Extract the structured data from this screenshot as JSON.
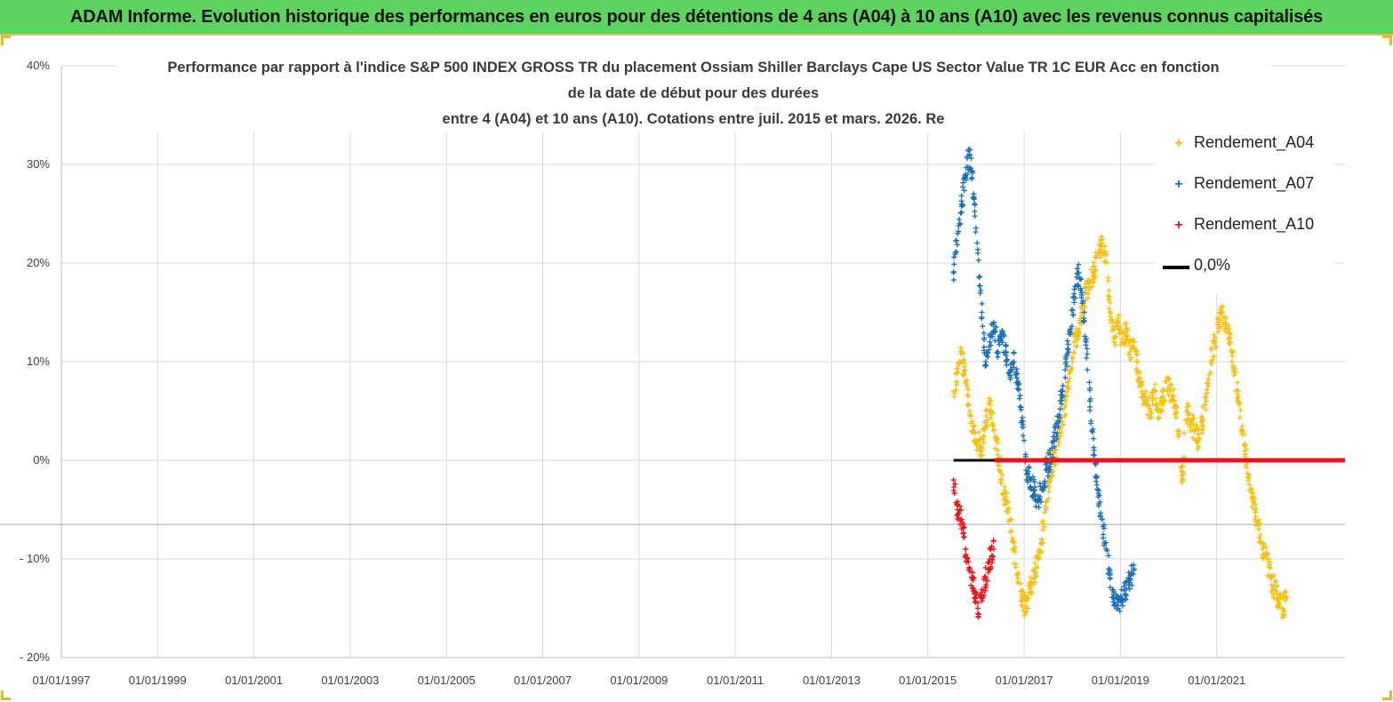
{
  "banner": {
    "title": "ADAM Informe. Evolution historique des performances en euros pour des détentions de 4 ans (A04) à 10 ans (A10) avec les revenus connus capitalisés",
    "background": "#5fd35f"
  },
  "chart_data": {
    "type": "scatter",
    "title_lines": [
      "Performance par rapport à l'indice S&P  500 INDEX GROSS TR  du placement Ossiam Shiller Barclays Cape US Sector Value TR 1C EUR Acc en fonction",
      "de la date de début pour des durées",
      "entre 4 (A04) et 10 ans (A10). Cotations entre juil. 2015 et mars. 2026. Re"
    ],
    "xlabel": "",
    "ylabel": "",
    "x_tick_labels": [
      "01/01/1997",
      "01/01/1999",
      "01/01/2001",
      "01/01/2003",
      "01/01/2005",
      "01/01/2007",
      "01/01/2009",
      "01/01/2011",
      "01/01/2013",
      "01/01/2015",
      "01/01/2017",
      "01/01/2019",
      "01/01/2021"
    ],
    "xlim": [
      "1997-01-01",
      "2023-09-01"
    ],
    "y_tick_labels": [
      "40%",
      "30%",
      "20%",
      "10%",
      "0%",
      "- 10%",
      "- 20%"
    ],
    "y_ticks": [
      40,
      30,
      20,
      10,
      0,
      -10,
      -20
    ],
    "ylim": [
      -20,
      40
    ],
    "y_unit": "%",
    "grid": true,
    "legend_position": "right",
    "series": [
      {
        "name": "Rendement_A04",
        "color": "#f5c012",
        "marker": "plus",
        "points": [
          [
            "2015-07-15",
            7
          ],
          [
            "2015-08-15",
            9
          ],
          [
            "2015-09-15",
            11
          ],
          [
            "2015-10-15",
            8
          ],
          [
            "2015-11-15",
            5
          ],
          [
            "2015-12-15",
            3
          ],
          [
            "2016-01-15",
            2
          ],
          [
            "2016-02-15",
            1
          ],
          [
            "2016-03-15",
            4
          ],
          [
            "2016-04-15",
            6
          ],
          [
            "2016-05-15",
            3
          ],
          [
            "2016-06-15",
            1
          ],
          [
            "2016-07-15",
            -2
          ],
          [
            "2016-08-15",
            -4
          ],
          [
            "2016-09-15",
            -6
          ],
          [
            "2016-10-15",
            -9
          ],
          [
            "2016-11-15",
            -12
          ],
          [
            "2016-12-15",
            -14
          ],
          [
            "2017-01-15",
            -15
          ],
          [
            "2017-02-15",
            -13
          ],
          [
            "2017-03-15",
            -12
          ],
          [
            "2017-04-15",
            -10
          ],
          [
            "2017-05-15",
            -8
          ],
          [
            "2017-06-15",
            -5
          ],
          [
            "2017-07-15",
            -2
          ],
          [
            "2017-08-15",
            0
          ],
          [
            "2017-09-15",
            2
          ],
          [
            "2017-10-15",
            4
          ],
          [
            "2017-11-15",
            6
          ],
          [
            "2017-12-15",
            9
          ],
          [
            "2018-01-15",
            12
          ],
          [
            "2018-02-15",
            13
          ],
          [
            "2018-03-15",
            15
          ],
          [
            "2018-04-15",
            17
          ],
          [
            "2018-05-15",
            18
          ],
          [
            "2018-06-15",
            19
          ],
          [
            "2018-07-15",
            21
          ],
          [
            "2018-08-15",
            22
          ],
          [
            "2018-09-15",
            20
          ],
          [
            "2018-10-15",
            15
          ],
          [
            "2018-11-15",
            12
          ],
          [
            "2018-12-15",
            14
          ],
          [
            "2019-01-15",
            12
          ],
          [
            "2019-02-15",
            13
          ],
          [
            "2019-03-15",
            11
          ],
          [
            "2019-04-15",
            12
          ],
          [
            "2019-05-15",
            9
          ],
          [
            "2019-06-15",
            7
          ],
          [
            "2019-07-15",
            6
          ],
          [
            "2019-08-15",
            5
          ],
          [
            "2019-09-15",
            7
          ],
          [
            "2019-10-15",
            5
          ],
          [
            "2019-11-15",
            6
          ],
          [
            "2019-12-15",
            8
          ],
          [
            "2020-01-15",
            7
          ],
          [
            "2020-02-15",
            6
          ],
          [
            "2020-03-15",
            3
          ],
          [
            "2020-04-15",
            -2
          ],
          [
            "2020-05-15",
            5
          ],
          [
            "2020-06-15",
            4
          ],
          [
            "2020-07-15",
            3
          ],
          [
            "2020-08-15",
            2
          ],
          [
            "2020-09-15",
            4
          ],
          [
            "2020-10-15",
            6
          ],
          [
            "2020-11-15",
            10
          ],
          [
            "2020-12-15",
            12
          ],
          [
            "2021-01-15",
            14
          ],
          [
            "2021-02-15",
            15
          ],
          [
            "2021-03-15",
            13
          ],
          [
            "2021-04-15",
            12
          ],
          [
            "2021-05-15",
            9
          ],
          [
            "2021-06-15",
            6
          ],
          [
            "2021-07-15",
            3
          ],
          [
            "2021-08-15",
            0
          ],
          [
            "2021-09-15",
            -3
          ],
          [
            "2021-10-15",
            -5
          ],
          [
            "2021-11-15",
            -7
          ],
          [
            "2021-12-15",
            -9
          ],
          [
            "2022-01-15",
            -10
          ],
          [
            "2022-02-15",
            -12
          ],
          [
            "2022-03-15",
            -13
          ],
          [
            "2022-04-15",
            -14
          ],
          [
            "2022-05-15",
            -15
          ],
          [
            "2022-06-15",
            -14
          ]
        ]
      },
      {
        "name": "Rendement_A07",
        "color": "#1b6fb8",
        "marker": "plus",
        "points": [
          [
            "2015-07-15",
            19
          ],
          [
            "2015-08-15",
            23
          ],
          [
            "2015-09-15",
            26
          ],
          [
            "2015-10-15",
            29
          ],
          [
            "2015-11-15",
            31
          ],
          [
            "2015-12-15",
            27
          ],
          [
            "2016-01-15",
            21
          ],
          [
            "2016-02-15",
            15
          ],
          [
            "2016-03-15",
            10
          ],
          [
            "2016-04-15",
            12
          ],
          [
            "2016-05-15",
            14
          ],
          [
            "2016-06-15",
            11
          ],
          [
            "2016-07-15",
            13
          ],
          [
            "2016-08-15",
            11
          ],
          [
            "2016-09-15",
            9
          ],
          [
            "2016-10-15",
            10
          ],
          [
            "2016-11-15",
            8
          ],
          [
            "2016-12-15",
            4
          ],
          [
            "2017-01-15",
            -1
          ],
          [
            "2017-02-15",
            -2
          ],
          [
            "2017-03-15",
            -3
          ],
          [
            "2017-04-15",
            -4
          ],
          [
            "2017-05-15",
            -3
          ],
          [
            "2017-06-15",
            -1
          ],
          [
            "2017-07-15",
            0
          ],
          [
            "2017-08-15",
            2
          ],
          [
            "2017-09-15",
            4
          ],
          [
            "2017-10-15",
            7
          ],
          [
            "2017-11-15",
            10
          ],
          [
            "2017-12-15",
            13
          ],
          [
            "2018-01-15",
            16
          ],
          [
            "2018-02-15",
            19
          ],
          [
            "2018-03-15",
            17
          ],
          [
            "2018-04-15",
            12
          ],
          [
            "2018-05-15",
            6
          ],
          [
            "2018-06-15",
            1
          ],
          [
            "2018-07-15",
            -3
          ],
          [
            "2018-08-15",
            -6
          ],
          [
            "2018-09-15",
            -9
          ],
          [
            "2018-10-15",
            -12
          ],
          [
            "2018-11-15",
            -14
          ],
          [
            "2018-12-15",
            -15
          ],
          [
            "2019-01-15",
            -14
          ],
          [
            "2019-02-15",
            -13
          ],
          [
            "2019-03-15",
            -12
          ],
          [
            "2019-04-15",
            -11
          ]
        ]
      },
      {
        "name": "Rendement_A10",
        "color": "#e8141c",
        "marker": "plus",
        "points": [
          [
            "2015-07-15",
            -2
          ],
          [
            "2015-08-15",
            -5
          ],
          [
            "2015-09-15",
            -6
          ],
          [
            "2015-10-15",
            -9
          ],
          [
            "2015-11-15",
            -11
          ],
          [
            "2015-12-15",
            -13
          ],
          [
            "2016-01-15",
            -15
          ],
          [
            "2016-02-15",
            -14
          ],
          [
            "2016-03-15",
            -12
          ],
          [
            "2016-04-15",
            -10
          ],
          [
            "2016-05-15",
            -9
          ]
        ]
      },
      {
        "name": "0,0%",
        "color": "#000000",
        "marker": "line",
        "points": [
          [
            "2015-07-15",
            0
          ],
          [
            "2023-09-01",
            0
          ]
        ]
      }
    ]
  }
}
